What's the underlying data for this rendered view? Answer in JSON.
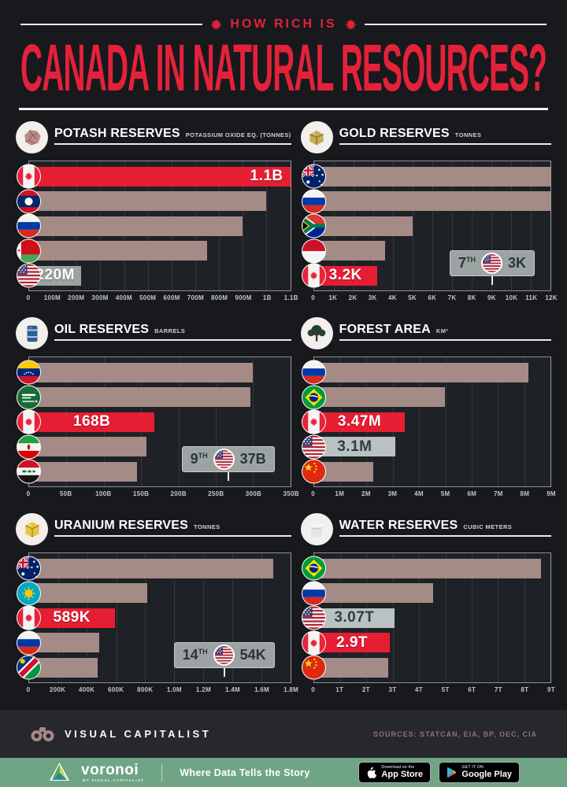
{
  "header": {
    "kicker": "HOW RICH IS",
    "title": "CANADA IN NATURAL RESOURCES?"
  },
  "colors": {
    "accent_red": "#e51e33",
    "bar_mauve": "#a48b85",
    "bar_silver": "#b9c2c2",
    "bar_steel": "#9aa3a1",
    "footer_green": "#6fa585",
    "background": "#17191d"
  },
  "chart_data": [
    {
      "id": "potash",
      "type": "bar",
      "orientation": "horizontal",
      "title": "POTASH RESERVES",
      "subtitle": "POTASSIUM OXIDE EQ. (TONNES)",
      "axis": {
        "min": 0,
        "max": 1100,
        "unit": "millions of tonnes",
        "ticks": [
          "0",
          "100M",
          "200M",
          "300M",
          "400M",
          "500M",
          "600M",
          "700M",
          "800M",
          "900M",
          "1B",
          "1.1B"
        ]
      },
      "bars": [
        {
          "country": "Canada",
          "flag": "canada",
          "value": 1100,
          "label": "1.1B",
          "highlight": "red"
        },
        {
          "country": "Laos",
          "flag": "laos",
          "value": 1000
        },
        {
          "country": "Russia",
          "flag": "russia",
          "value": 900
        },
        {
          "country": "Belarus",
          "flag": "belarus",
          "value": 750
        },
        {
          "country": "United States",
          "flag": "usa",
          "value": 220,
          "label": "220M",
          "highlight": "steel"
        }
      ]
    },
    {
      "id": "gold",
      "type": "bar",
      "orientation": "horizontal",
      "title": "GOLD RESERVES",
      "subtitle": "TONNES",
      "axis": {
        "min": 0,
        "max": 12000,
        "unit": "tonnes",
        "ticks": [
          "0",
          "1K",
          "2K",
          "3K",
          "4K",
          "5K",
          "6K",
          "7K",
          "8K",
          "9K",
          "10K",
          "11K",
          "12K"
        ]
      },
      "bars": [
        {
          "country": "Australia",
          "flag": "australia",
          "value": 12000
        },
        {
          "country": "Russia",
          "flag": "russia",
          "value": 12000
        },
        {
          "country": "South Africa",
          "flag": "southafrica",
          "value": 5000
        },
        {
          "country": "Indonesia",
          "flag": "indonesia",
          "value": 3600
        },
        {
          "country": "Canada",
          "flag": "canada",
          "value": 3200,
          "label": "3.2K",
          "highlight": "red"
        }
      ],
      "callout": {
        "rank": "7",
        "ordinal": "TH",
        "flag": "usa",
        "value": "3K"
      }
    },
    {
      "id": "oil",
      "type": "bar",
      "orientation": "horizontal",
      "title": "OIL RESERVES",
      "subtitle": "BARRELS",
      "axis": {
        "min": 0,
        "max": 350,
        "unit": "billions of barrels",
        "ticks": [
          "0",
          "50B",
          "100B",
          "150B",
          "200B",
          "250B",
          "300B",
          "350B"
        ]
      },
      "bars": [
        {
          "country": "Venezuela",
          "flag": "venezuela",
          "value": 300
        },
        {
          "country": "Saudi Arabia",
          "flag": "saudiarabia",
          "value": 297
        },
        {
          "country": "Canada",
          "flag": "canada",
          "value": 168,
          "label": "168B",
          "highlight": "red"
        },
        {
          "country": "Iran",
          "flag": "iran",
          "value": 157
        },
        {
          "country": "Iraq",
          "flag": "iraq",
          "value": 145
        }
      ],
      "callout": {
        "rank": "9",
        "ordinal": "TH",
        "flag": "usa",
        "value": "37B"
      }
    },
    {
      "id": "forest",
      "type": "bar",
      "orientation": "horizontal",
      "title": "FOREST AREA",
      "subtitle": "KM²",
      "axis": {
        "min": 0,
        "max": 9,
        "unit": "millions of km²",
        "ticks": [
          "0",
          "1M",
          "2M",
          "3M",
          "4M",
          "5M",
          "6M",
          "7M",
          "8M",
          "9M"
        ]
      },
      "bars": [
        {
          "country": "Russia",
          "flag": "russia",
          "value": 8.15
        },
        {
          "country": "Brazil",
          "flag": "brazil",
          "value": 4.97
        },
        {
          "country": "Canada",
          "flag": "canada",
          "value": 3.47,
          "label": "3.47M",
          "highlight": "red"
        },
        {
          "country": "United States",
          "flag": "usa",
          "value": 3.1,
          "label": "3.1M",
          "highlight": "silver"
        },
        {
          "country": "China",
          "flag": "china",
          "value": 2.25
        }
      ]
    },
    {
      "id": "uranium",
      "type": "bar",
      "orientation": "horizontal",
      "title": "URANIUM RESERVES",
      "subtitle": "TONNES",
      "axis": {
        "min": 0,
        "max": 1800,
        "unit": "thousands of tonnes",
        "ticks": [
          "0",
          "200K",
          "400K",
          "600K",
          "800K",
          "1.0M",
          "1.2M",
          "1.4M",
          "1.6M",
          "1.8M"
        ]
      },
      "bars": [
        {
          "country": "Australia",
          "flag": "australia",
          "value": 1684
        },
        {
          "country": "Kazakhstan",
          "flag": "kazakhstan",
          "value": 815
        },
        {
          "country": "Canada",
          "flag": "canada",
          "value": 589,
          "label": "589K",
          "highlight": "red"
        },
        {
          "country": "Russia",
          "flag": "russia",
          "value": 481
        },
        {
          "country": "Namibia",
          "flag": "namibia",
          "value": 470
        }
      ],
      "callout": {
        "rank": "14",
        "ordinal": "TH",
        "flag": "usa",
        "value": "54K"
      }
    },
    {
      "id": "water",
      "type": "bar",
      "orientation": "horizontal",
      "title": "WATER RESERVES",
      "subtitle": "CUBIC METERS",
      "axis": {
        "min": 0,
        "max": 9,
        "unit": "trillions of cubic meters",
        "ticks": [
          "0",
          "1T",
          "2T",
          "3T",
          "4T",
          "5T",
          "6T",
          "7T",
          "8T",
          "9T"
        ]
      },
      "bars": [
        {
          "country": "Brazil",
          "flag": "brazil",
          "value": 8.65
        },
        {
          "country": "Russia",
          "flag": "russia",
          "value": 4.53
        },
        {
          "country": "United States",
          "flag": "usa",
          "value": 3.07,
          "label": "3.07T",
          "highlight": "silver"
        },
        {
          "country": "Canada",
          "flag": "canada",
          "value": 2.9,
          "label": "2.9T",
          "highlight": "red"
        },
        {
          "country": "China",
          "flag": "china",
          "value": 2.84
        }
      ]
    }
  ],
  "footer": {
    "brand": "VISUAL CAPITALIST",
    "sources": "SOURCES: STATCAN, EIA, BP, OEC, CIA",
    "voronoi_name": "voronoi",
    "voronoi_byline": "BY VISUAL CAPITALIST",
    "tagline": "Where Data Tells the Story",
    "appstore_kicker": "Download on the",
    "appstore_name": "App Store",
    "googleplay_kicker": "GET IT ON",
    "googleplay_name": "Google Play"
  }
}
